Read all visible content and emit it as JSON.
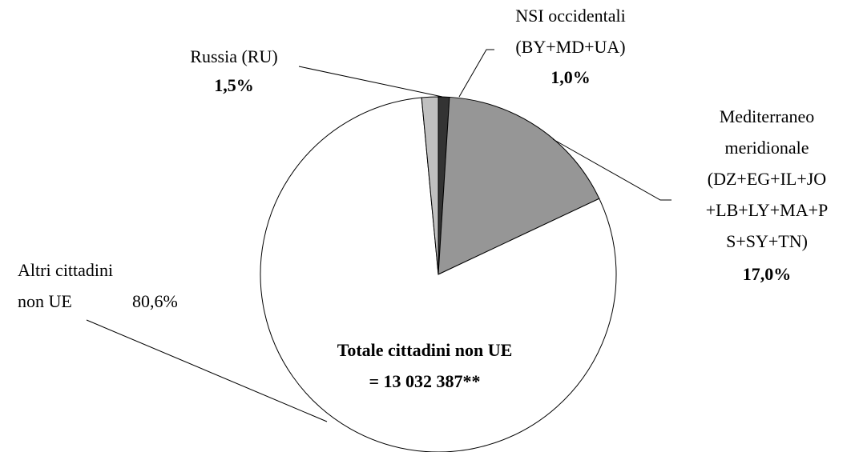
{
  "chart_data": {
    "type": "pie",
    "categories": [
      "NSI occidentali\n(BY+MD+UA)",
      "Mediterraneo\nmeridionale\n(DZ+EG+IL+JO\n+LB+LY+MA+P\nS+SY+TN)",
      "Altri cittadini\nnon UE",
      "Russia  (RU)"
    ],
    "values": [
      1.0,
      17.0,
      80.6,
      1.5
    ],
    "value_labels": [
      "1,0%",
      "17,0%",
      "80,6%",
      "1,5%"
    ],
    "colors": [
      "#333333",
      "#969696",
      "#ffffff",
      "#c0c0c0"
    ],
    "annotation": "Totale cittadini non UE\n= 13 032 387**"
  }
}
